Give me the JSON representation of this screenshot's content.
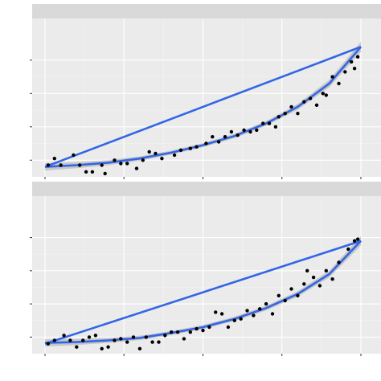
{
  "chart_data": [
    {
      "type": "scatter",
      "facet_strip_label": "",
      "title": "",
      "xlabel": "",
      "ylabel": "",
      "xlim": [
        0,
        1
      ],
      "ylim": [
        0.1,
        1.05
      ],
      "x_major_ticks": [
        0,
        0.25,
        0.5,
        0.75,
        1.0
      ],
      "y_major_ticks": [
        0.2,
        0.4,
        0.6,
        0.8
      ],
      "grid": true,
      "points": [
        [
          0.01,
          0.17
        ],
        [
          0.03,
          0.21
        ],
        [
          0.05,
          0.17
        ],
        [
          0.09,
          0.23
        ],
        [
          0.11,
          0.17
        ],
        [
          0.13,
          0.13
        ],
        [
          0.15,
          0.13
        ],
        [
          0.18,
          0.17
        ],
        [
          0.19,
          0.12
        ],
        [
          0.22,
          0.2
        ],
        [
          0.24,
          0.18
        ],
        [
          0.26,
          0.18
        ],
        [
          0.29,
          0.15
        ],
        [
          0.31,
          0.2
        ],
        [
          0.33,
          0.25
        ],
        [
          0.35,
          0.24
        ],
        [
          0.37,
          0.21
        ],
        [
          0.41,
          0.23
        ],
        [
          0.43,
          0.26
        ],
        [
          0.46,
          0.27
        ],
        [
          0.48,
          0.28
        ],
        [
          0.51,
          0.3
        ],
        [
          0.53,
          0.34
        ],
        [
          0.55,
          0.31
        ],
        [
          0.57,
          0.34
        ],
        [
          0.59,
          0.37
        ],
        [
          0.61,
          0.35
        ],
        [
          0.63,
          0.38
        ],
        [
          0.65,
          0.37
        ],
        [
          0.67,
          0.38
        ],
        [
          0.69,
          0.42
        ],
        [
          0.71,
          0.42
        ],
        [
          0.73,
          0.4
        ],
        [
          0.74,
          0.46
        ],
        [
          0.76,
          0.48
        ],
        [
          0.78,
          0.52
        ],
        [
          0.8,
          0.48
        ],
        [
          0.82,
          0.55
        ],
        [
          0.84,
          0.57
        ],
        [
          0.86,
          0.53
        ],
        [
          0.88,
          0.6
        ],
        [
          0.89,
          0.59
        ],
        [
          0.91,
          0.7
        ],
        [
          0.93,
          0.66
        ],
        [
          0.95,
          0.73
        ],
        [
          0.97,
          0.79
        ],
        [
          0.98,
          0.75
        ],
        [
          0.99,
          0.82
        ]
      ],
      "linear_fit": {
        "x": [
          0.0,
          1.0
        ],
        "y": [
          0.16,
          0.88
        ]
      },
      "smooth_fit": {
        "x": [
          0.0,
          0.1,
          0.2,
          0.3,
          0.4,
          0.5,
          0.6,
          0.7,
          0.8,
          0.9,
          1.0
        ],
        "y": [
          0.16,
          0.17,
          0.185,
          0.21,
          0.245,
          0.29,
          0.345,
          0.42,
          0.52,
          0.66,
          0.88
        ],
        "ribbon_halfwidth": [
          0.022,
          0.018,
          0.015,
          0.013,
          0.012,
          0.012,
          0.013,
          0.014,
          0.017,
          0.022,
          0.03
        ]
      }
    },
    {
      "type": "scatter",
      "facet_strip_label": "",
      "title": "",
      "xlabel": "",
      "ylabel": "",
      "xlim": [
        0,
        1
      ],
      "ylim": [
        0.1,
        1.05
      ],
      "x_major_ticks": [
        0,
        0.25,
        0.5,
        0.75,
        1.0
      ],
      "y_major_ticks": [
        0.2,
        0.4,
        0.6,
        0.8
      ],
      "grid": true,
      "points": [
        [
          0.01,
          0.16
        ],
        [
          0.03,
          0.18
        ],
        [
          0.06,
          0.21
        ],
        [
          0.08,
          0.18
        ],
        [
          0.1,
          0.14
        ],
        [
          0.12,
          0.18
        ],
        [
          0.14,
          0.2
        ],
        [
          0.16,
          0.21
        ],
        [
          0.18,
          0.13
        ],
        [
          0.2,
          0.14
        ],
        [
          0.22,
          0.18
        ],
        [
          0.24,
          0.19
        ],
        [
          0.26,
          0.17
        ],
        [
          0.28,
          0.2
        ],
        [
          0.3,
          0.13
        ],
        [
          0.32,
          0.2
        ],
        [
          0.34,
          0.17
        ],
        [
          0.36,
          0.17
        ],
        [
          0.38,
          0.21
        ],
        [
          0.4,
          0.23
        ],
        [
          0.42,
          0.23
        ],
        [
          0.44,
          0.19
        ],
        [
          0.46,
          0.23
        ],
        [
          0.48,
          0.25
        ],
        [
          0.5,
          0.24
        ],
        [
          0.52,
          0.26
        ],
        [
          0.54,
          0.35
        ],
        [
          0.56,
          0.34
        ],
        [
          0.58,
          0.26
        ],
        [
          0.6,
          0.3
        ],
        [
          0.62,
          0.31
        ],
        [
          0.64,
          0.36
        ],
        [
          0.66,
          0.33
        ],
        [
          0.68,
          0.37
        ],
        [
          0.7,
          0.4
        ],
        [
          0.72,
          0.34
        ],
        [
          0.74,
          0.45
        ],
        [
          0.76,
          0.42
        ],
        [
          0.78,
          0.49
        ],
        [
          0.8,
          0.45
        ],
        [
          0.82,
          0.52
        ],
        [
          0.83,
          0.6
        ],
        [
          0.85,
          0.56
        ],
        [
          0.87,
          0.51
        ],
        [
          0.89,
          0.6
        ],
        [
          0.91,
          0.55
        ],
        [
          0.93,
          0.65
        ],
        [
          0.96,
          0.73
        ],
        [
          0.98,
          0.78
        ],
        [
          0.99,
          0.79
        ]
      ],
      "linear_fit": {
        "x": [
          0.0,
          1.0
        ],
        "y": [
          0.16,
          0.78
        ]
      },
      "smooth_fit": {
        "x": [
          0.0,
          0.1,
          0.2,
          0.3,
          0.4,
          0.5,
          0.6,
          0.7,
          0.8,
          0.9,
          1.0
        ],
        "y": [
          0.165,
          0.17,
          0.18,
          0.195,
          0.225,
          0.26,
          0.31,
          0.375,
          0.46,
          0.58,
          0.78
        ],
        "ribbon_halfwidth": [
          0.022,
          0.018,
          0.015,
          0.013,
          0.012,
          0.012,
          0.013,
          0.014,
          0.016,
          0.02,
          0.028
        ]
      }
    }
  ]
}
